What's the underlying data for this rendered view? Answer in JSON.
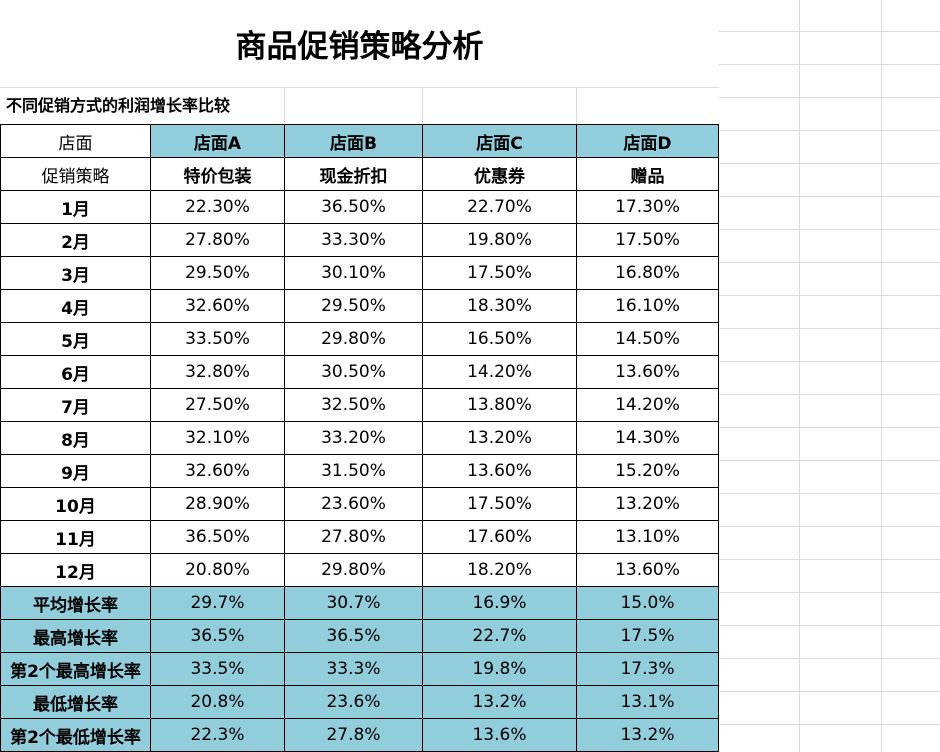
{
  "title": "商品促销策略分析",
  "subtitle": "不同促销方式的利润增长率比较",
  "header": {
    "store_label": "店面",
    "strategy_label": "促销策略",
    "stores": [
      "店面A",
      "店面B",
      "店面C",
      "店面D"
    ],
    "strategies": [
      "特价包装",
      "现金折扣",
      "优惠券",
      "赠品"
    ]
  },
  "months": [
    {
      "label": "1月",
      "values": [
        "22.30%",
        "36.50%",
        "22.70%",
        "17.30%"
      ]
    },
    {
      "label": "2月",
      "values": [
        "27.80%",
        "33.30%",
        "19.80%",
        "17.50%"
      ]
    },
    {
      "label": "3月",
      "values": [
        "29.50%",
        "30.10%",
        "17.50%",
        "16.80%"
      ]
    },
    {
      "label": "4月",
      "values": [
        "32.60%",
        "29.50%",
        "18.30%",
        "16.10%"
      ]
    },
    {
      "label": "5月",
      "values": [
        "33.50%",
        "29.80%",
        "16.50%",
        "14.50%"
      ]
    },
    {
      "label": "6月",
      "values": [
        "32.80%",
        "30.50%",
        "14.20%",
        "13.60%"
      ]
    },
    {
      "label": "7月",
      "values": [
        "27.50%",
        "32.50%",
        "13.80%",
        "14.20%"
      ]
    },
    {
      "label": "8月",
      "values": [
        "32.10%",
        "33.20%",
        "13.20%",
        "14.30%"
      ]
    },
    {
      "label": "9月",
      "values": [
        "32.60%",
        "31.50%",
        "13.60%",
        "15.20%"
      ]
    },
    {
      "label": "10月",
      "values": [
        "28.90%",
        "23.60%",
        "17.50%",
        "13.20%"
      ]
    },
    {
      "label": "11月",
      "values": [
        "36.50%",
        "27.80%",
        "17.60%",
        "13.10%"
      ]
    },
    {
      "label": "12月",
      "values": [
        "20.80%",
        "29.80%",
        "18.20%",
        "13.60%"
      ]
    }
  ],
  "stats": [
    {
      "label": "平均增长率",
      "values": [
        "29.7%",
        "30.7%",
        "16.9%",
        "15.0%"
      ]
    },
    {
      "label": "最高增长率",
      "values": [
        "36.5%",
        "36.5%",
        "22.7%",
        "17.5%"
      ]
    },
    {
      "label": "第2个最高增长率",
      "values": [
        "33.5%",
        "33.3%",
        "19.8%",
        "17.3%"
      ]
    },
    {
      "label": "最低增长率",
      "values": [
        "20.8%",
        "23.6%",
        "13.2%",
        "13.1%"
      ]
    },
    {
      "label": "第2个最低增长率",
      "values": [
        "22.3%",
        "27.8%",
        "13.6%",
        "13.2%"
      ]
    }
  ],
  "colors": {
    "header_fill": "#92cddc",
    "gridline": "#dcdcdc"
  }
}
